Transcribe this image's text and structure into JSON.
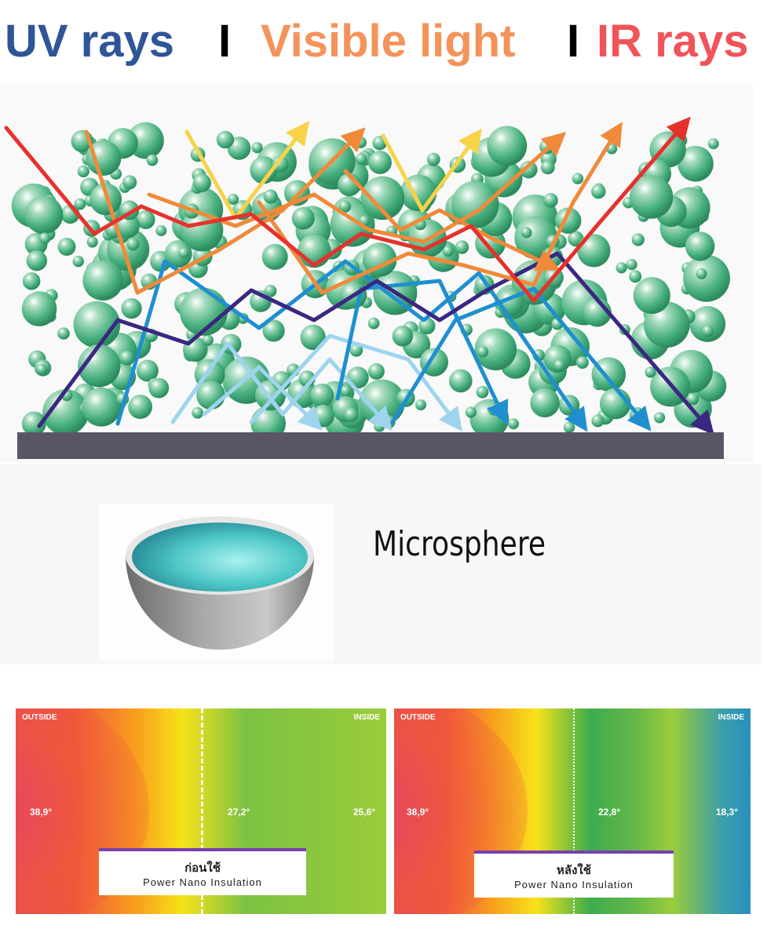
{
  "header": {
    "uv": "UV rays",
    "sep1": "I",
    "visible": "Visible light",
    "sep2": "I",
    "ir": "IR rays",
    "colors": {
      "uv": "#2f5597",
      "visible": "#f4935a",
      "ir": "#f0545a",
      "separator": "#000000"
    }
  },
  "microsphere": {
    "label": "Microsphere"
  },
  "thermal": [
    {
      "outside": "OUTSIDE",
      "inside": "INSIDE",
      "temps": [
        "38,9°",
        "27,2°",
        "25,6°"
      ],
      "caption_th": "ก่อนใช้",
      "caption_en": "Power Nano Insulation"
    },
    {
      "outside": "OUTSIDE",
      "inside": "INSIDE",
      "temps": [
        "38,9°",
        "22,8°",
        "18,3°"
      ],
      "caption_th": "หลังใช้",
      "caption_en": "Power Nano Insulation"
    }
  ]
}
